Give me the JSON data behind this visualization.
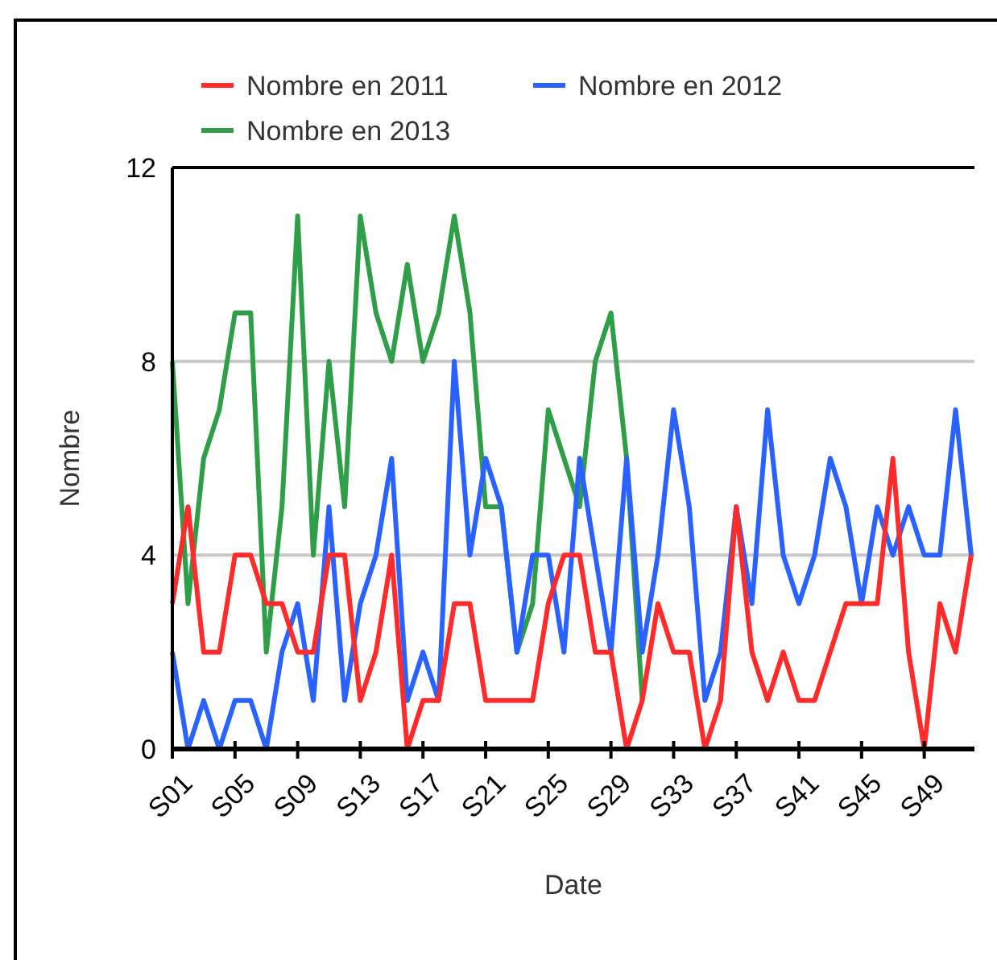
{
  "chart_data": {
    "type": "line",
    "xlabel": "Date",
    "ylabel": "Nombre",
    "categories": [
      "S01",
      null,
      null,
      null,
      "S05",
      null,
      null,
      null,
      "S09",
      null,
      null,
      null,
      "S13",
      null,
      null,
      null,
      "S17",
      null,
      null,
      null,
      "S21",
      null,
      null,
      null,
      "S25",
      null,
      null,
      null,
      "S29",
      null,
      null,
      null,
      "S33",
      null,
      null,
      null,
      "S37",
      null,
      null,
      null,
      "S41",
      null,
      null,
      null,
      "S45",
      null,
      null,
      null,
      "S49",
      null,
      null,
      null
    ],
    "series": [
      {
        "name": "Nombre en 2011",
        "color": "#ff2a2a",
        "values": [
          3,
          5,
          2,
          2,
          4,
          4,
          3,
          3,
          2,
          2,
          4,
          4,
          1,
          2,
          4,
          0,
          1,
          1,
          3,
          3,
          1,
          1,
          1,
          1,
          3,
          4,
          4,
          2,
          2,
          0,
          1,
          3,
          2,
          2,
          0,
          1,
          5,
          2,
          1,
          2,
          1,
          1,
          2,
          3,
          3,
          3,
          6,
          2,
          0,
          3,
          2,
          4
        ]
      },
      {
        "name": "Nombre en 2012",
        "color": "#2962ff",
        "values": [
          2,
          0,
          1,
          0,
          1,
          1,
          0,
          2,
          3,
          1,
          5,
          1,
          3,
          4,
          6,
          1,
          2,
          1,
          8,
          4,
          6,
          5,
          2,
          4,
          4,
          2,
          6,
          4,
          2,
          6,
          2,
          4,
          7,
          5,
          1,
          2,
          5,
          3,
          7,
          4,
          3,
          4,
          6,
          5,
          3,
          5,
          4,
          5,
          4,
          4,
          7,
          4
        ]
      },
      {
        "name": "Nombre en 2013",
        "color": "#2e9e48",
        "values": [
          8,
          3,
          6,
          7,
          9,
          9,
          2,
          5,
          11,
          4,
          8,
          5,
          11,
          9,
          8,
          10,
          8,
          9,
          11,
          9,
          5,
          5,
          2,
          3,
          7,
          6,
          5,
          8,
          9,
          6,
          1,
          null,
          null,
          null,
          null,
          null,
          null,
          null,
          null,
          null,
          null,
          null,
          null,
          null,
          null,
          null,
          null,
          null,
          null,
          null,
          null,
          null
        ]
      }
    ],
    "ylim": [
      0,
      12
    ],
    "yticks": [
      0,
      4,
      8,
      12
    ],
    "grid": "y",
    "legend": "top left",
    "marker": "none",
    "line_style": "solid"
  }
}
